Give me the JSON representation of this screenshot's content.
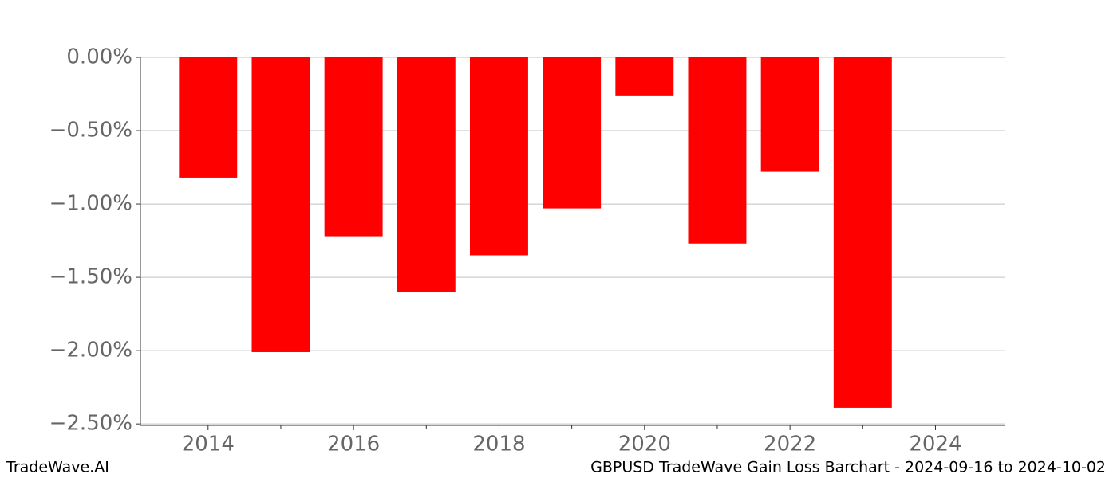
{
  "chart_data": {
    "type": "bar",
    "x": [
      2014,
      2015,
      2016,
      2017,
      2018,
      2019,
      2020,
      2021,
      2022,
      2023
    ],
    "values": [
      -0.82,
      -2.01,
      -1.22,
      -1.6,
      -1.35,
      -1.03,
      -0.26,
      -1.27,
      -0.78,
      -2.39
    ],
    "color": "#ff0000",
    "xlim": [
      2013.07,
      2024.96
    ],
    "xticks": [
      2014,
      2016,
      2018,
      2020,
      2022,
      2024
    ],
    "xminorticks": [
      2015,
      2017,
      2019,
      2021,
      2023
    ],
    "ylim": [
      -2.51,
      0
    ],
    "yticks": [
      {
        "value": 0,
        "label": "0.00%"
      },
      {
        "value": -0.5,
        "label": "−0.50%"
      },
      {
        "value": -1.0,
        "label": "−1.00%"
      },
      {
        "value": -1.5,
        "label": "−1.50%"
      },
      {
        "value": -2.0,
        "label": "−2.00%"
      },
      {
        "value": -2.5,
        "label": "−2.50%"
      }
    ],
    "grid": true,
    "footer_left": "TradeWave.AI",
    "footer_right": "GBPUSD TradeWave Gain Loss Barchart - 2024-09-16 to 2024-10-02"
  }
}
